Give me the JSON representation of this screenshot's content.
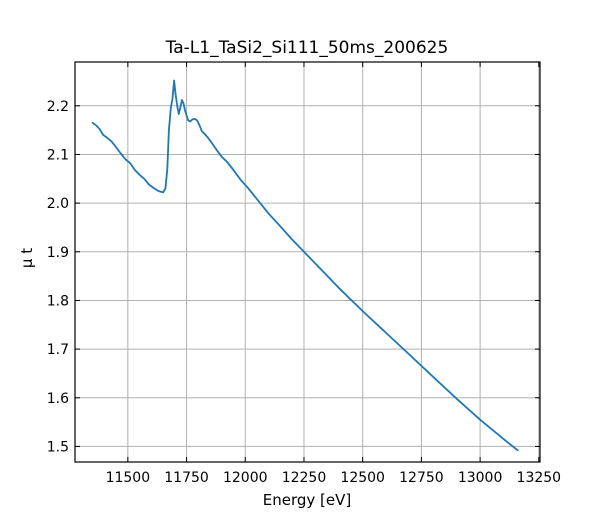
{
  "chart_data": {
    "type": "line",
    "title": "Ta-L1_TaSi2_Si111_50ms_200625",
    "xlabel": "Energy [eV]",
    "ylabel": "μ t",
    "xlim": [
      11275,
      13255
    ],
    "ylim": [
      1.468,
      2.29
    ],
    "grid": true,
    "x_ticks": [
      11500,
      11750,
      12000,
      12250,
      12500,
      12750,
      13000,
      13250
    ],
    "x_tick_labels": [
      "11500",
      "11750",
      "12000",
      "12250",
      "12500",
      "12750",
      "13000",
      "13250"
    ],
    "y_ticks": [
      1.5,
      1.6,
      1.7,
      1.8,
      1.9,
      2.0,
      2.1,
      2.2
    ],
    "y_tick_labels": [
      "1.5",
      "1.6",
      "1.7",
      "1.8",
      "1.9",
      "2.0",
      "2.1",
      "2.2"
    ],
    "series": [
      {
        "color": "#1f77b4",
        "x": [
          11350,
          11365,
          11380,
          11395,
          11410,
          11430,
          11450,
          11470,
          11490,
          11510,
          11530,
          11550,
          11570,
          11590,
          11610,
          11630,
          11650,
          11660,
          11668,
          11675,
          11683,
          11690,
          11697,
          11703,
          11710,
          11717,
          11723,
          11730,
          11737,
          11744,
          11750,
          11757,
          11765,
          11775,
          11785,
          11795,
          11805,
          11815,
          11825,
          11840,
          11860,
          11880,
          11900,
          11920,
          11950,
          11980,
          12010,
          12050,
          12100,
          12150,
          12200,
          12250,
          12300,
          12400,
          12500,
          12600,
          12700,
          12800,
          12900,
          13000,
          13100,
          13160
        ],
        "y": [
          2.165,
          2.16,
          2.152,
          2.14,
          2.135,
          2.127,
          2.115,
          2.102,
          2.09,
          2.082,
          2.068,
          2.058,
          2.05,
          2.038,
          2.031,
          2.025,
          2.022,
          2.03,
          2.07,
          2.15,
          2.195,
          2.215,
          2.252,
          2.225,
          2.2,
          2.183,
          2.195,
          2.212,
          2.205,
          2.19,
          2.18,
          2.17,
          2.168,
          2.172,
          2.173,
          2.17,
          2.16,
          2.148,
          2.143,
          2.135,
          2.122,
          2.108,
          2.095,
          2.086,
          2.068,
          2.048,
          2.032,
          2.008,
          1.978,
          1.952,
          1.925,
          1.9,
          1.875,
          1.825,
          1.778,
          1.733,
          1.688,
          1.643,
          1.598,
          1.555,
          1.515,
          1.492
        ]
      }
    ]
  }
}
